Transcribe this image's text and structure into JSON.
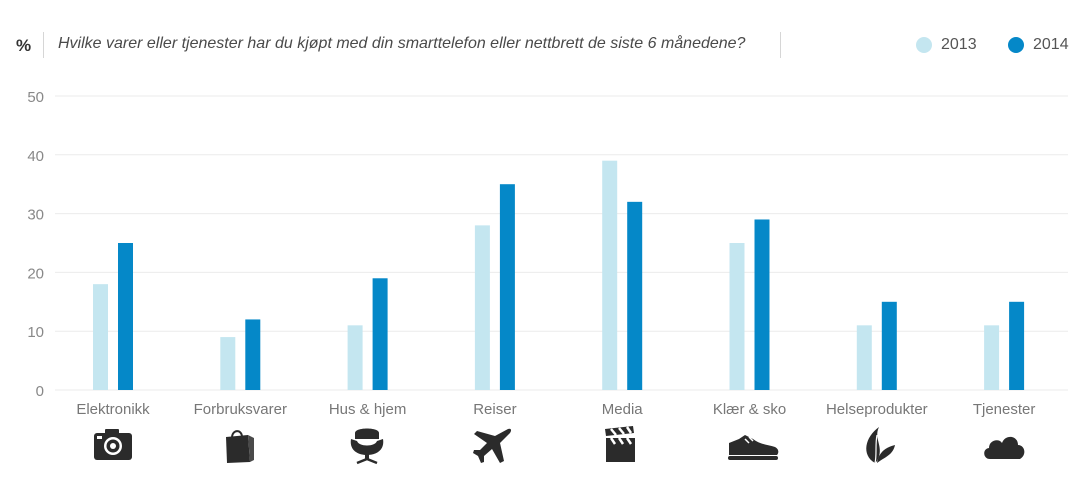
{
  "header": {
    "unit": "%",
    "question": "Hvilke varer eller tjenester har du kjøpt med din smarttelefon eller nettbrett de siste 6 månedene?"
  },
  "colors": {
    "series_2013": "#c4e6f0",
    "series_2014": "#0588c8",
    "grid": "#ebebeb",
    "axis_text": "#777777",
    "icon": "#2b2b2b"
  },
  "legend": [
    {
      "label": "2013",
      "color": "#c4e6f0"
    },
    {
      "label": "2014",
      "color": "#0588c8"
    }
  ],
  "chart_data": {
    "type": "bar",
    "categories": [
      "Elektronikk",
      "Forbruksvarer",
      "Hus & hjem",
      "Reiser",
      "Media",
      "Klær & sko",
      "Helseprodukter",
      "Tjenester"
    ],
    "series": [
      {
        "name": "2013",
        "values": [
          18,
          9,
          11,
          28,
          39,
          25,
          11,
          11
        ]
      },
      {
        "name": "2014",
        "values": [
          25,
          12,
          19,
          35,
          32,
          29,
          15,
          15
        ]
      }
    ],
    "ylim": [
      0,
      50
    ],
    "yticks": [
      0,
      10,
      20,
      30,
      40,
      50
    ],
    "grid": true,
    "legend_position": "top-right"
  },
  "category_icons": [
    "camera-icon",
    "shopping-bag-icon",
    "armchair-icon",
    "airplane-icon",
    "clapperboard-icon",
    "shoe-icon",
    "leaf-icon",
    "cloud-icon"
  ]
}
